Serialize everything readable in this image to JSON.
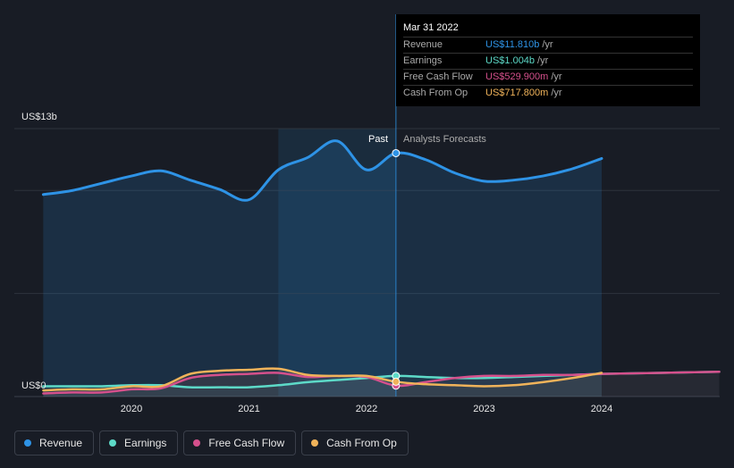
{
  "chart_data": {
    "type": "line",
    "title": "",
    "xlabel": "",
    "ylabel": "",
    "y_unit_labels": {
      "top": "US$13b",
      "bottom": "US$0"
    },
    "ylim": [
      0,
      13
    ],
    "xlim": [
      2019.25,
      2025.0
    ],
    "x_ticks": [
      "2020",
      "2021",
      "2022",
      "2023",
      "2024"
    ],
    "x_tick_values": [
      2020,
      2021,
      2022,
      2023,
      2024
    ],
    "past_label": "Past",
    "forecast_label": "Analysts Forecasts",
    "past_start": 2021.25,
    "divider_x": 2022.25,
    "grid": true,
    "legend_position": "bottom-left",
    "series": [
      {
        "name": "Revenue",
        "color": "#2e93e6",
        "fill": true,
        "x": [
          2019.25,
          2019.5,
          2019.75,
          2020.0,
          2020.25,
          2020.5,
          2020.75,
          2021.0,
          2021.25,
          2021.5,
          2021.75,
          2022.0,
          2022.25,
          2022.5,
          2022.75,
          2023.0,
          2023.25,
          2023.5,
          2023.75,
          2024.0
        ],
        "values": [
          9.8,
          10.0,
          10.35,
          10.7,
          10.95,
          10.5,
          10.05,
          9.55,
          11.0,
          11.6,
          12.4,
          11.0,
          11.81,
          11.5,
          10.85,
          10.45,
          10.5,
          10.7,
          11.05,
          11.55
        ]
      },
      {
        "name": "Earnings",
        "color": "#5ddac8",
        "fill": false,
        "x": [
          2019.25,
          2019.5,
          2019.75,
          2020.0,
          2020.25,
          2020.5,
          2020.75,
          2021.0,
          2021.25,
          2021.5,
          2021.75,
          2022.0,
          2022.25,
          2022.5,
          2022.75,
          2023.0,
          2023.25,
          2023.5,
          2023.75,
          2024.0,
          2024.5,
          2025.0
        ],
        "values": [
          0.5,
          0.5,
          0.5,
          0.55,
          0.55,
          0.45,
          0.45,
          0.45,
          0.55,
          0.7,
          0.8,
          0.9,
          1.004,
          0.95,
          0.9,
          0.9,
          0.95,
          1.0,
          1.05,
          1.1,
          1.15,
          1.2
        ]
      },
      {
        "name": "Free Cash Flow",
        "color": "#d5508c",
        "fill": false,
        "x": [
          2019.25,
          2019.5,
          2019.75,
          2020.0,
          2020.25,
          2020.5,
          2020.75,
          2021.0,
          2021.25,
          2021.5,
          2021.75,
          2022.0,
          2022.25,
          2022.5,
          2022.75,
          2023.0,
          2023.25,
          2023.5,
          2023.75,
          2024.0,
          2024.5,
          2025.0
        ],
        "values": [
          0.15,
          0.2,
          0.2,
          0.35,
          0.4,
          0.9,
          1.05,
          1.1,
          1.15,
          0.95,
          1.0,
          0.95,
          0.53,
          0.7,
          0.9,
          1.0,
          1.0,
          1.05,
          1.05,
          1.1,
          1.15,
          1.2
        ]
      },
      {
        "name": "Cash From Op",
        "color": "#f0b35a",
        "fill": false,
        "x": [
          2019.25,
          2019.5,
          2019.75,
          2020.0,
          2020.25,
          2020.5,
          2020.75,
          2021.0,
          2021.25,
          2021.5,
          2021.75,
          2022.0,
          2022.25,
          2022.5,
          2022.75,
          2023.0,
          2023.25,
          2023.5,
          2023.75,
          2024.0
        ],
        "values": [
          0.3,
          0.35,
          0.35,
          0.5,
          0.5,
          1.1,
          1.25,
          1.3,
          1.35,
          1.05,
          1.0,
          1.0,
          0.718,
          0.6,
          0.55,
          0.5,
          0.55,
          0.7,
          0.9,
          1.15
        ]
      }
    ]
  },
  "tooltip": {
    "title": "Mar 31 2022",
    "rows": [
      {
        "label": "Revenue",
        "value": "US$11.810b",
        "unit": "/yr",
        "color": "#2e93e6"
      },
      {
        "label": "Earnings",
        "value": "US$1.004b",
        "unit": "/yr",
        "color": "#5ddac8"
      },
      {
        "label": "Free Cash Flow",
        "value": "US$529.900m",
        "unit": "/yr",
        "color": "#d5508c"
      },
      {
        "label": "Cash From Op",
        "value": "US$717.800m",
        "unit": "/yr",
        "color": "#f0b35a"
      }
    ]
  },
  "legend": [
    {
      "label": "Revenue",
      "color": "#2e93e6"
    },
    {
      "label": "Earnings",
      "color": "#5ddac8"
    },
    {
      "label": "Free Cash Flow",
      "color": "#d5508c"
    },
    {
      "label": "Cash From Op",
      "color": "#f0b35a"
    }
  ]
}
